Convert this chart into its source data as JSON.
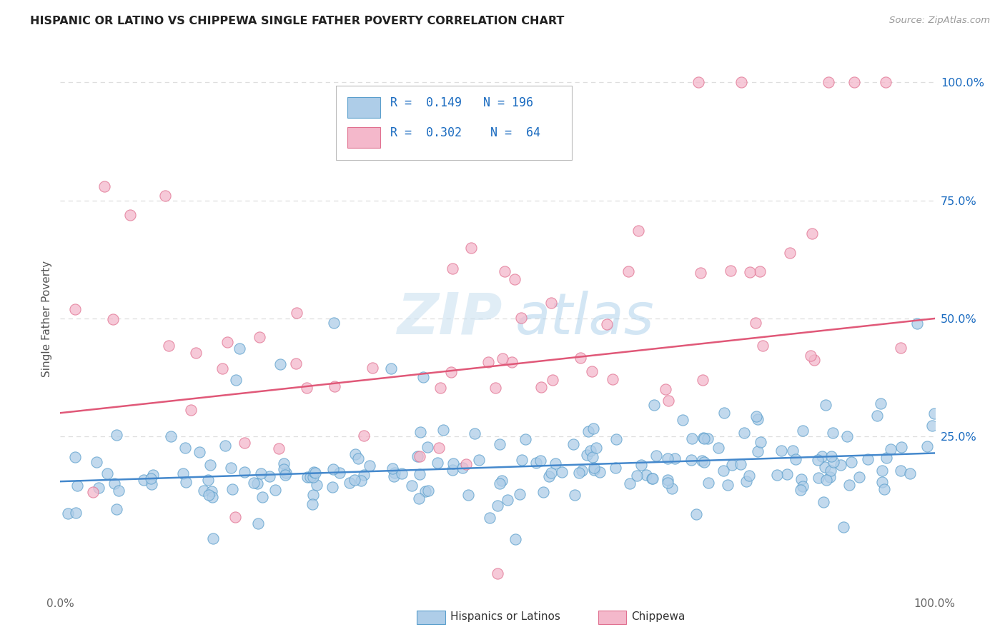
{
  "title": "HISPANIC OR LATINO VS CHIPPEWA SINGLE FATHER POVERTY CORRELATION CHART",
  "source": "Source: ZipAtlas.com",
  "ylabel": "Single Father Poverty",
  "legend_label1": "Hispanics or Latinos",
  "legend_label2": "Chippewa",
  "r1": "0.149",
  "n1": "196",
  "r2": "0.302",
  "n2": "64",
  "color_blue_fill": "#aecde8",
  "color_blue_edge": "#5b9fcc",
  "color_pink_fill": "#f4b8cb",
  "color_pink_edge": "#e07090",
  "color_blue_line": "#4488cc",
  "color_pink_line": "#e05878",
  "color_blue_text": "#1a6bc0",
  "ytick_labels": [
    "100.0%",
    "75.0%",
    "50.0%",
    "25.0%"
  ],
  "ytick_values": [
    1.0,
    0.75,
    0.5,
    0.25
  ],
  "xlim": [
    0.0,
    1.0
  ],
  "ylim": [
    -0.08,
    1.08
  ],
  "blue_trend_x0": 0.0,
  "blue_trend_x1": 1.0,
  "blue_trend_y0": 0.155,
  "blue_trend_y1": 0.215,
  "pink_trend_x0": 0.0,
  "pink_trend_x1": 1.0,
  "pink_trend_y0": 0.3,
  "pink_trend_y1": 0.5,
  "watermark_zip": "ZIP",
  "watermark_atlas": "atlas",
  "grid_color": "#dedede",
  "background_color": "#ffffff"
}
